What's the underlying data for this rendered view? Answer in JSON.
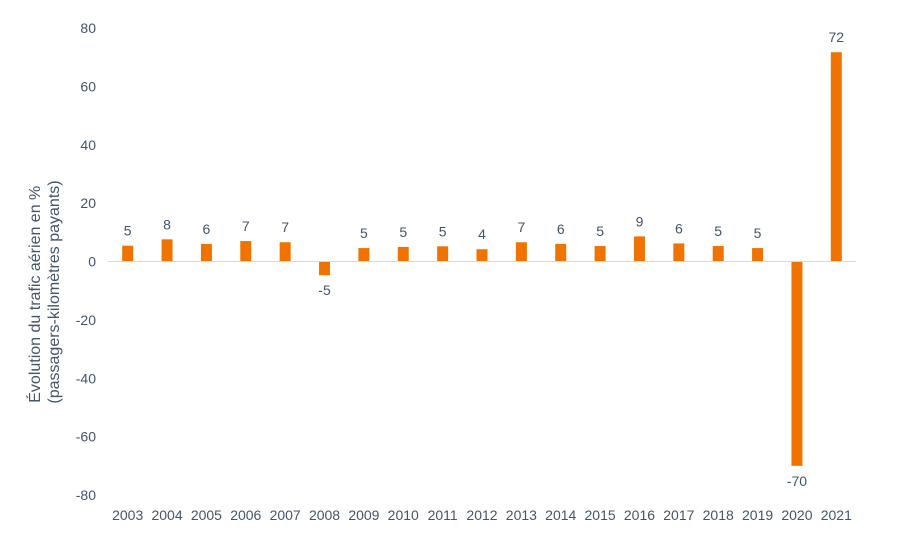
{
  "chart_data": {
    "type": "bar",
    "categories": [
      "2003",
      "2004",
      "2005",
      "2006",
      "2007",
      "2008",
      "2009",
      "2010",
      "2011",
      "2012",
      "2013",
      "2014",
      "2015",
      "2016",
      "2017",
      "2018",
      "2019",
      "2020",
      "2021"
    ],
    "values": [
      5.4,
      7.6,
      6.0,
      7.0,
      6.6,
      -4.7,
      4.6,
      5.0,
      5.2,
      4.2,
      6.6,
      6.0,
      5.3,
      8.6,
      6.2,
      5.3,
      4.6,
      -70,
      71.7
    ],
    "data_labels": [
      "5",
      "8",
      "6",
      "7",
      "7",
      "-5",
      "5",
      "5",
      "5",
      "4",
      "7",
      "6",
      "5",
      "9",
      "6",
      "5",
      "5",
      "-70",
      "72"
    ],
    "title": "",
    "xlabel": "",
    "ylabel_lines": [
      "Évolution du trafic aérien en %",
      "(passagers-kilomètres payants)"
    ],
    "ylim": [
      -80,
      80
    ],
    "yticks": [
      "80",
      "60",
      "40",
      "20",
      "0",
      "-20",
      "-40",
      "-60",
      "-80"
    ],
    "grid": false,
    "legend": "none",
    "bar_color": "#f07300",
    "baseline_color": "#d9d9d9",
    "text_color": "#44546a"
  }
}
